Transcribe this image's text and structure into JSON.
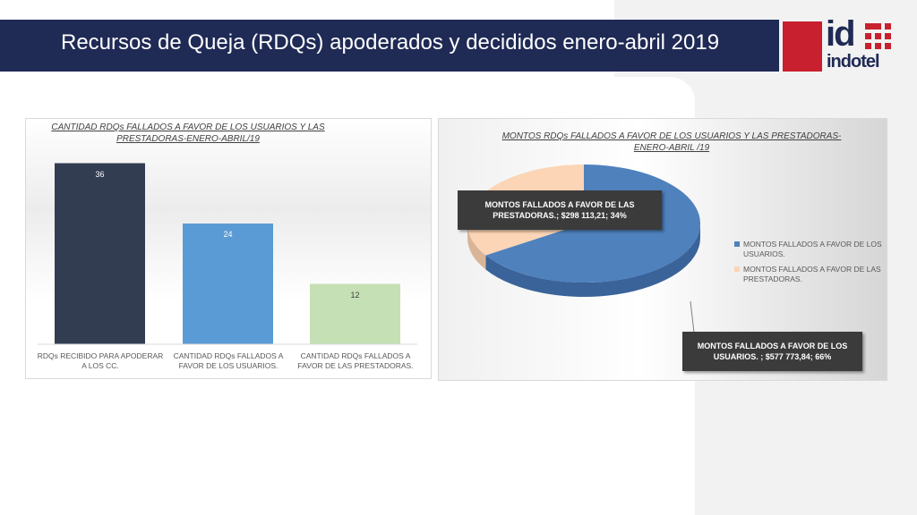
{
  "slide": {
    "title": "Recursos de Queja (RDQs) apoderados y decididos  enero-abril 2019",
    "logo_id": "id",
    "logo_word": "indotel"
  },
  "colors": {
    "title_bar": "#1f2a55",
    "logo_red": "#c8202e",
    "bar_series": [
      "#323d52",
      "#5b9bd5",
      "#c5e0b4"
    ],
    "pie_users": "#4f81bd",
    "pie_providers": "#fbd5b5"
  },
  "chart_data": [
    {
      "type": "bar",
      "title": "CANTIDAD RDQs FALLADOS A FAVOR DE LOS USUARIOS Y LAS PRESTADORAS-ENERO-ABRIL/19",
      "categories": [
        "RDQs RECIBIDO PARA APODERAR A LOS CC.",
        "CANTIDAD RDQs FALLADOS A FAVOR DE LOS USUARIOS.",
        "CANTIDAD RDQs FALLADOS A FAVOR DE LAS PRESTADORAS."
      ],
      "values": [
        36,
        24,
        12
      ],
      "data_labels": [
        "36",
        "24",
        "12"
      ],
      "ylim": [
        0,
        40
      ],
      "grid": false
    },
    {
      "type": "pie",
      "title": "MONTOS RDQs FALLADOS A FAVOR DE LOS USUARIOS Y LAS PRESTADORAS-ENERO-ABRIL /19",
      "slices": [
        {
          "name": "MONTOS  FALLADOS A FAVOR DE LOS USUARIOS.",
          "value": 577773.84,
          "percent": 66,
          "label": "MONTOS  FALLADOS A FAVOR DE LOS USUARIOS. ; $577 773,84; 66%"
        },
        {
          "name": "MONTOS FALLADOS  A FAVOR DE LAS PRESTADORAS.",
          "value": 298113.21,
          "percent": 34,
          "label": "MONTOS FALLADOS  A FAVOR DE LAS PRESTADORAS.; $298 113,21; 34%"
        }
      ],
      "legend_position": "right"
    }
  ]
}
